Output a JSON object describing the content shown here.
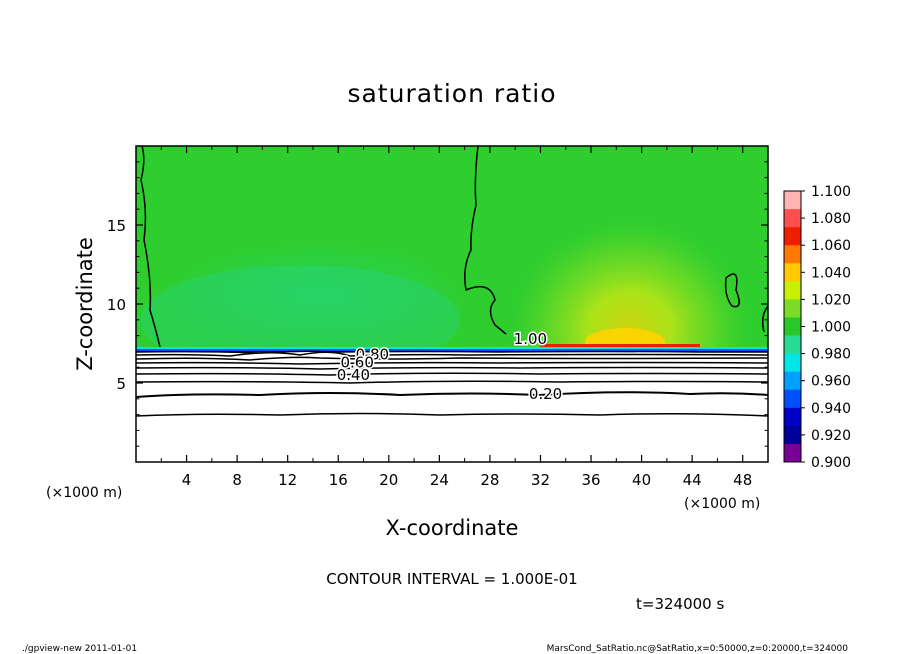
{
  "chart_data": {
    "type": "heatmap",
    "title": "saturation ratio",
    "xlabel": "X-coordinate",
    "ylabel": "Z-coordinate",
    "x_unit_left": "(×1000 m)",
    "x_unit_right": "(×1000 m)",
    "xlim": [
      0,
      50
    ],
    "ylim": [
      0,
      20
    ],
    "xticks": [
      "4",
      "8",
      "12",
      "16",
      "20",
      "24",
      "28",
      "32",
      "36",
      "40",
      "44",
      "48"
    ],
    "yticks": [
      "5",
      "10",
      "15"
    ],
    "colorbar": {
      "levels": [
        "1.100",
        "1.080",
        "1.060",
        "1.040",
        "1.020",
        "1.000",
        "0.980",
        "0.960",
        "0.940",
        "0.920",
        "0.900"
      ],
      "colors": [
        "#ffb4b4",
        "#ff5050",
        "#f01e00",
        "#ff7800",
        "#ffc800",
        "#c8f000",
        "#7ddc28",
        "#28c828",
        "#28dc96",
        "#00e6e6",
        "#00a0ff",
        "#0050ff",
        "#0000c8",
        "#00009b",
        "#780096"
      ]
    },
    "contour_labels": [
      {
        "text": "1.00",
        "x": 31.2,
        "z": 7.8
      },
      {
        "text": "0.80",
        "x": 18.7,
        "z": 6.8
      },
      {
        "text": "0.60",
        "x": 17.5,
        "z": 6.3
      },
      {
        "text": "0.40",
        "x": 17.2,
        "z": 5.5
      },
      {
        "text": "0.20",
        "x": 32.4,
        "z": 4.3
      }
    ],
    "contour_interval": "CONTOUR INTERVAL = 1.000E-01",
    "time": "t=324000 s"
  },
  "footer": {
    "left": "./gpview-new   2011-01-01",
    "right": "MarsCond_SatRatio.nc@SatRatio,x=0:50000,z=0:20000,t=324000"
  }
}
